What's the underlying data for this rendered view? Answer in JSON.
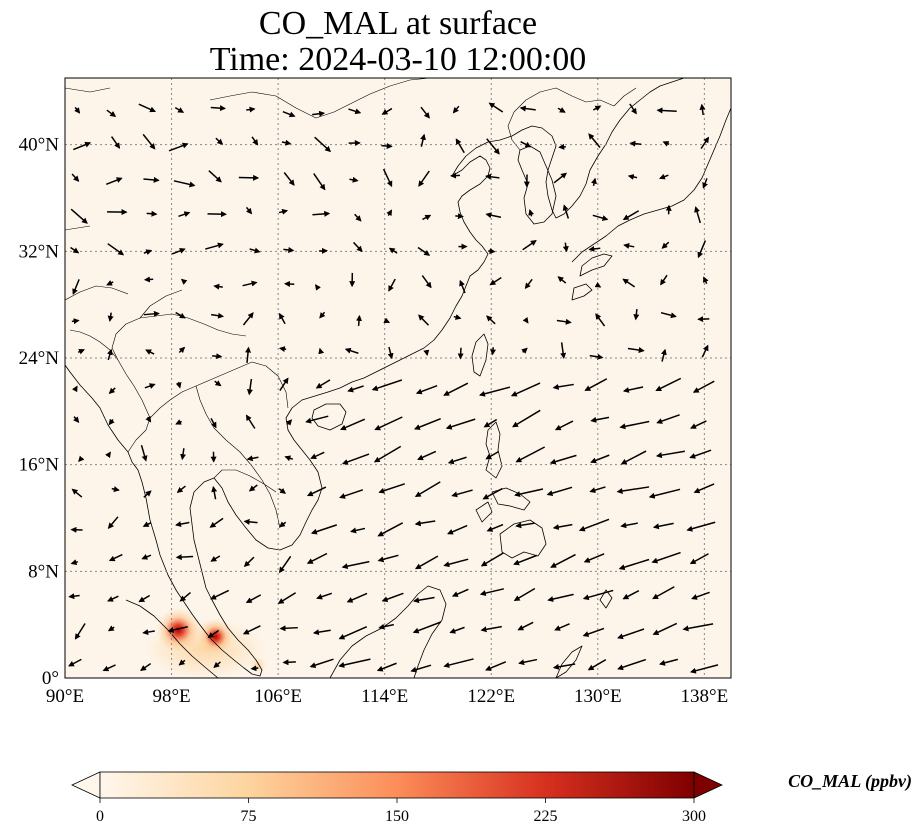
{
  "title": {
    "line1": "CO_MAL at surface",
    "line2": "Time: 2024-03-10 12:00:00"
  },
  "map": {
    "projection": "PlateCarree",
    "lon_range": [
      90,
      140
    ],
    "lat_range": [
      0,
      45
    ],
    "lon_ticks": [
      {
        "value": 90,
        "label": "90°E"
      },
      {
        "value": 98,
        "label": "98°E"
      },
      {
        "value": 106,
        "label": "106°E"
      },
      {
        "value": 114,
        "label": "114°E"
      },
      {
        "value": 122,
        "label": "122°E"
      },
      {
        "value": 130,
        "label": "130°E"
      },
      {
        "value": 138,
        "label": "138°E"
      }
    ],
    "lat_ticks": [
      {
        "value": 0,
        "label": "0°"
      },
      {
        "value": 8,
        "label": "8°N"
      },
      {
        "value": 16,
        "label": "16°N"
      },
      {
        "value": 24,
        "label": "24°N"
      },
      {
        "value": 32,
        "label": "32°N"
      },
      {
        "value": 40,
        "label": "40°N"
      }
    ],
    "gridlines": "dotted",
    "background_color": "#fdf5ea",
    "coastline_color": "#000000",
    "hotspots": [
      {
        "lon": 98.5,
        "lat": 3.6,
        "value": 300
      },
      {
        "lon": 101.3,
        "lat": 3.1,
        "value": 220
      },
      {
        "lon": 104.5,
        "lat": 1.0,
        "value": 40
      }
    ],
    "wind_vectors_shown": true
  },
  "colorbar": {
    "label": "CO_MAL (ppbv)",
    "min": 0,
    "max": 300,
    "extend": "both",
    "colormap": "OrRd",
    "stops": [
      "#fff7ec",
      "#fdd49e",
      "#fc8d59",
      "#d7301f",
      "#7f0000"
    ],
    "ticks": [
      {
        "value": 0,
        "label": "0"
      },
      {
        "value": 75,
        "label": "75"
      },
      {
        "value": 150,
        "label": "150"
      },
      {
        "value": 225,
        "label": "225"
      },
      {
        "value": 300,
        "label": "300"
      }
    ]
  }
}
